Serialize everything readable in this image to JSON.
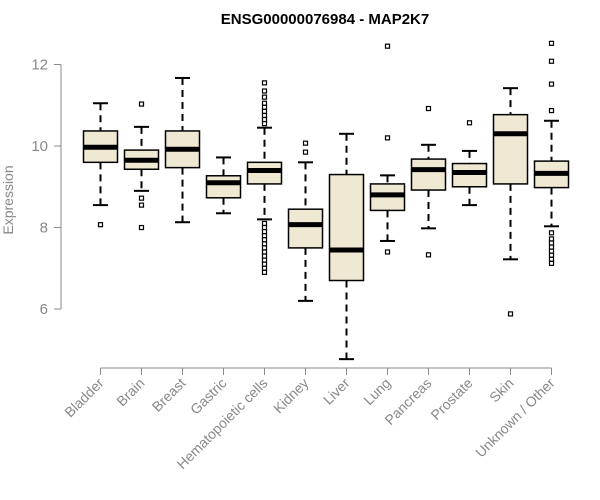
{
  "chart_data": {
    "type": "boxplot",
    "title": "ENSG00000076984 - MAP2K7",
    "xlabel": "",
    "ylabel": "Expression",
    "ylim": [
      4.7,
      12.7
    ],
    "yticks": [
      6,
      8,
      10,
      12
    ],
    "colors": {
      "box_fill": "#efe9d4",
      "stroke": "#000000",
      "axis": "#888888"
    },
    "categories": [
      "Bladder",
      "Brain",
      "Breast",
      "Gastric",
      "Hematopoietic cells",
      "Kidney",
      "Liver",
      "Lung",
      "Pancreas",
      "Prostate",
      "Skin",
      "Unknown / Other"
    ],
    "boxes": [
      {
        "name": "Bladder",
        "whisker_low": 8.55,
        "q1": 9.6,
        "median": 9.97,
        "q3": 10.37,
        "whisker_high": 11.05,
        "outliers": [
          8.07
        ]
      },
      {
        "name": "Brain",
        "whisker_low": 8.9,
        "q1": 9.43,
        "median": 9.65,
        "q3": 9.9,
        "whisker_high": 10.47,
        "outliers": [
          11.03,
          8.72,
          8.55,
          8.0
        ]
      },
      {
        "name": "Breast",
        "whisker_low": 8.13,
        "q1": 9.47,
        "median": 9.92,
        "q3": 10.37,
        "whisker_high": 11.67,
        "outliers": []
      },
      {
        "name": "Gastric",
        "whisker_low": 8.35,
        "q1": 8.73,
        "median": 9.1,
        "q3": 9.27,
        "whisker_high": 9.72,
        "outliers": []
      },
      {
        "name": "Hematopoietic cells",
        "whisker_low": 8.2,
        "q1": 9.07,
        "median": 9.4,
        "q3": 9.6,
        "whisker_high": 10.45,
        "outliers": [
          11.55,
          11.35,
          11.2,
          11.05,
          10.95,
          10.85,
          10.75,
          10.65,
          10.55,
          8.1,
          8.0,
          7.9,
          7.8,
          7.7,
          7.6,
          7.5,
          7.4,
          7.3,
          7.2,
          7.1,
          7.0,
          6.9
        ]
      },
      {
        "name": "Kidney",
        "whisker_low": 6.2,
        "q1": 7.5,
        "median": 8.07,
        "q3": 8.45,
        "whisker_high": 9.6,
        "outliers": [
          10.07,
          9.85
        ]
      },
      {
        "name": "Liver",
        "whisker_low": 4.77,
        "q1": 6.7,
        "median": 7.45,
        "q3": 9.3,
        "whisker_high": 10.3,
        "outliers": []
      },
      {
        "name": "Lung",
        "whisker_low": 7.67,
        "q1": 8.42,
        "median": 8.8,
        "q3": 9.07,
        "whisker_high": 9.28,
        "outliers": [
          12.45,
          10.2,
          7.4
        ]
      },
      {
        "name": "Pancreas",
        "whisker_low": 7.98,
        "q1": 8.92,
        "median": 9.42,
        "q3": 9.68,
        "whisker_high": 10.03,
        "outliers": [
          10.92,
          7.33
        ]
      },
      {
        "name": "Prostate",
        "whisker_low": 8.55,
        "q1": 9.0,
        "median": 9.35,
        "q3": 9.57,
        "whisker_high": 9.88,
        "outliers": [
          10.57
        ]
      },
      {
        "name": "Skin",
        "whisker_low": 7.22,
        "q1": 9.07,
        "median": 10.3,
        "q3": 10.77,
        "whisker_high": 11.42,
        "outliers": [
          5.88
        ]
      },
      {
        "name": "Unknown / Other",
        "whisker_low": 8.03,
        "q1": 8.98,
        "median": 9.33,
        "q3": 9.63,
        "whisker_high": 10.62,
        "outliers": [
          12.52,
          12.08,
          11.52,
          10.87,
          7.87,
          7.72,
          7.62,
          7.52,
          7.42,
          7.32,
          7.22,
          7.12
        ]
      }
    ]
  }
}
